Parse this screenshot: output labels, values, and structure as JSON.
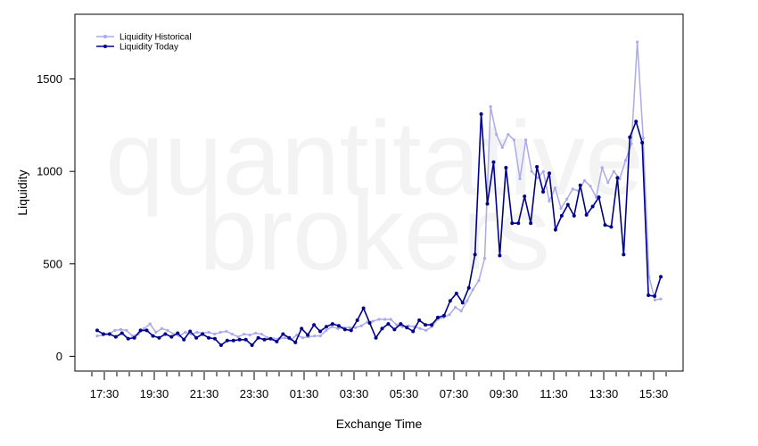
{
  "chart_data": {
    "type": "line",
    "xlabel": "Exchange Time",
    "ylabel": "Liquidity",
    "watermark": [
      "quantitative",
      "brokers"
    ],
    "x_ticks": [
      "17:30",
      "19:30",
      "21:30",
      "23:30",
      "01:30",
      "03:30",
      "05:30",
      "07:30",
      "09:30",
      "11:30",
      "13:30",
      "15:30"
    ],
    "y_ticks": [
      0,
      500,
      1000,
      1500
    ],
    "ylim": [
      -80,
      1850
    ],
    "grid": false,
    "legend_position": "top-left",
    "series": [
      {
        "name": "Liquidity Historical",
        "color": "#aaaaee",
        "values": [
          110,
          115,
          120,
          140,
          145,
          140,
          110,
          120,
          150,
          175,
          130,
          150,
          140,
          120,
          110,
          130,
          120,
          130,
          125,
          130,
          120,
          130,
          135,
          120,
          105,
          120,
          115,
          125,
          120,
          100,
          95,
          95,
          100,
          90,
          115,
          100,
          105,
          110,
          110,
          140,
          160,
          150,
          155,
          155,
          155,
          165,
          185,
          190,
          200,
          200,
          200,
          170,
          160,
          165,
          160,
          150,
          140,
          160,
          200,
          210,
          225,
          265,
          245,
          300,
          360,
          410,
          530,
          1350,
          1200,
          1130,
          1200,
          1170,
          960,
          1170,
          1000,
          965,
          1000,
          840,
          910,
          800,
          850,
          905,
          895,
          950,
          920,
          860,
          1020,
          940,
          1000,
          960,
          1060,
          1150,
          1700,
          1180,
          430,
          305,
          310
        ]
      },
      {
        "name": "Liquidity Today",
        "color": "#00008b",
        "values": [
          140,
          120,
          120,
          105,
          125,
          95,
          100,
          140,
          140,
          110,
          100,
          120,
          105,
          125,
          90,
          135,
          100,
          120,
          100,
          95,
          60,
          85,
          85,
          90,
          90,
          60,
          100,
          90,
          95,
          80,
          120,
          100,
          75,
          150,
          115,
          170,
          135,
          160,
          175,
          165,
          145,
          140,
          195,
          260,
          180,
          100,
          150,
          175,
          145,
          175,
          155,
          135,
          195,
          170,
          170,
          210,
          220,
          300,
          340,
          290,
          370,
          550,
          1310,
          825,
          1050,
          545,
          1020,
          720,
          720,
          865,
          720,
          1025,
          890,
          990,
          685,
          760,
          820,
          760,
          925,
          765,
          810,
          860,
          710,
          700,
          965,
          550,
          1185,
          1270,
          1155,
          330,
          325,
          430
        ]
      }
    ]
  }
}
